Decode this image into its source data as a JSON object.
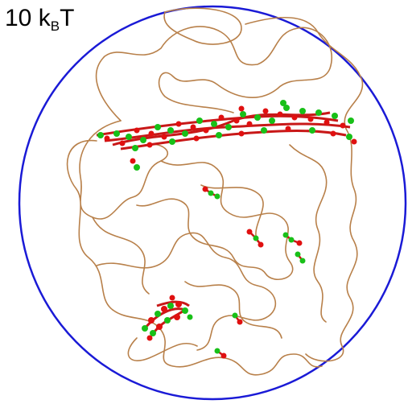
{
  "label": {
    "value": "10",
    "k": "k",
    "sub": "B",
    "t": "T"
  },
  "colors": {
    "boundary": "#1a1ad6",
    "polymer": "#b8804a",
    "bead_red": "#e01010",
    "bead_green": "#18c018",
    "bond": "#c81818"
  }
}
